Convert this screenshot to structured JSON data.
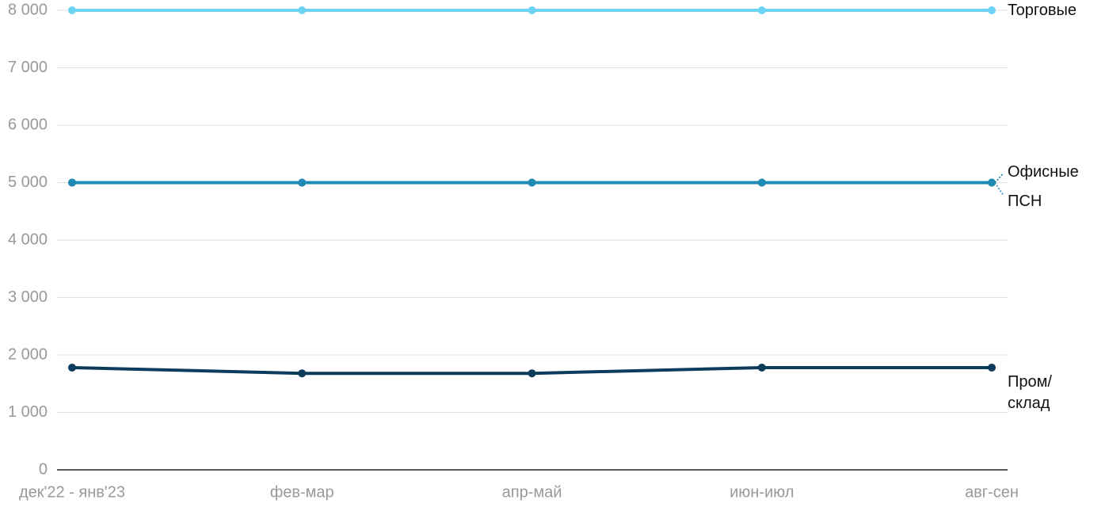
{
  "chart_data": {
    "type": "line",
    "categories": [
      "дек'22 - янв'23",
      "фев-мар",
      "апр-май",
      "июн-июл",
      "авг-сен"
    ],
    "series": [
      {
        "name": "Торговые",
        "color": "#6dd3f5",
        "values": [
          8000,
          8000,
          8000,
          8000,
          8000
        ]
      },
      {
        "name": "Офисные",
        "color": "#0b6e99",
        "values": [
          5000,
          5000,
          5000,
          5000,
          5000
        ]
      },
      {
        "name": "ПСН",
        "color": "#1f8bb5",
        "values": [
          5000,
          5000,
          5000,
          5000,
          5000
        ]
      },
      {
        "name": "Пром/\nсклад",
        "color": "#0d3b5c",
        "values": [
          1780,
          1680,
          1680,
          1780,
          1780
        ]
      }
    ],
    "ylim": [
      0,
      8000
    ],
    "yticks": [
      0,
      {
        "value": 1000,
        "label": "1 000"
      },
      {
        "value": 2000,
        "label": "2 000"
      },
      {
        "value": 3000,
        "label": "3 000"
      },
      {
        "value": 4000,
        "label": "4 000"
      },
      {
        "value": 5000,
        "label": "5 000"
      },
      {
        "value": 6000,
        "label": "6 000"
      },
      {
        "value": 7000,
        "label": "7 000"
      },
      {
        "value": 8000,
        "label": "8 000"
      }
    ],
    "grid": true
  }
}
